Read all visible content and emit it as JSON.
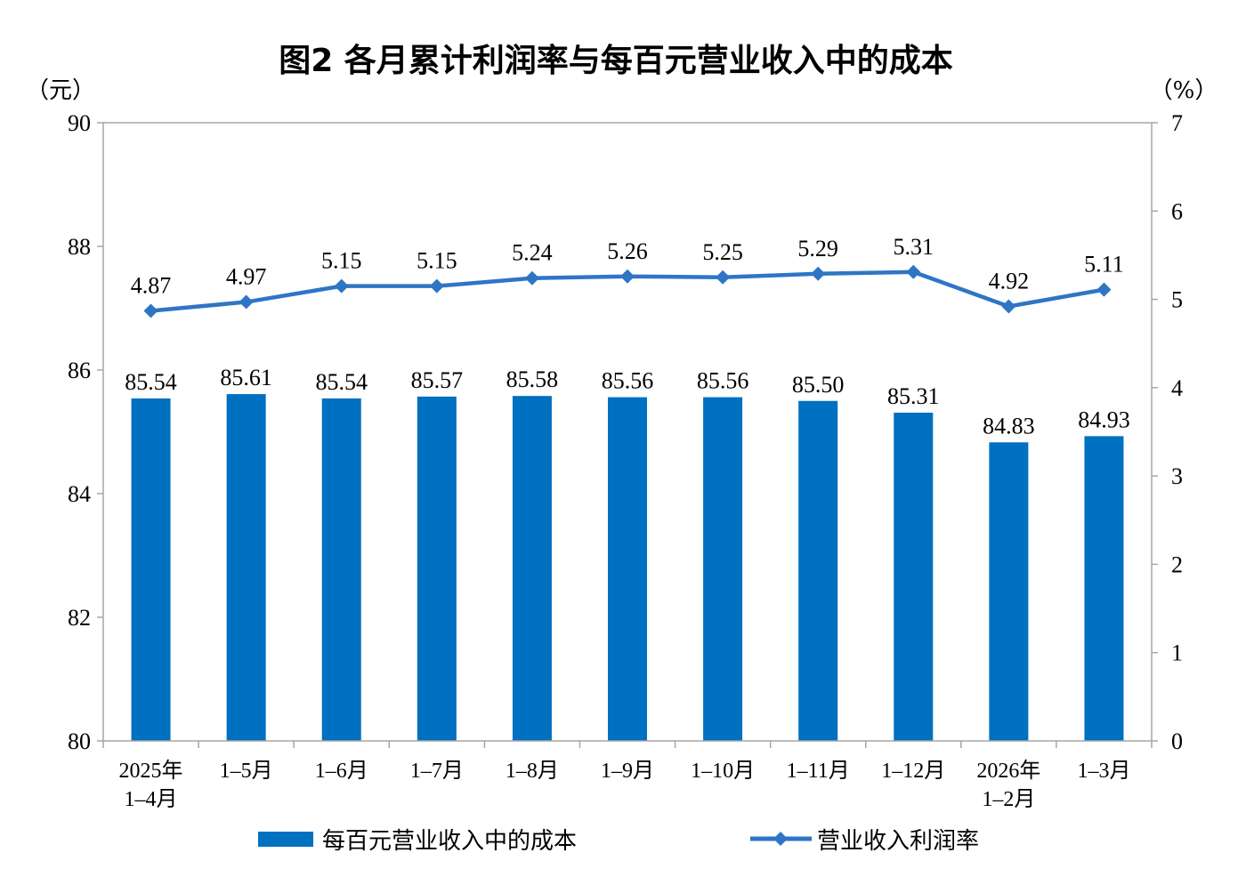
{
  "chart_data": {
    "type": "bar",
    "title": "图2  各月累计利润率与每百元营业收入中的成本",
    "left_unit": "（元）",
    "right_unit": "（%）",
    "categories": [
      [
        "2025年",
        "1–4月"
      ],
      [
        "1–5月"
      ],
      [
        "1–6月"
      ],
      [
        "1–7月"
      ],
      [
        "1–8月"
      ],
      [
        "1–9月"
      ],
      [
        "1–10月"
      ],
      [
        "1–11月"
      ],
      [
        "1–12月"
      ],
      [
        "2026年",
        "1–2月"
      ],
      [
        "1–3月"
      ]
    ],
    "left_axis": {
      "ylim": [
        80,
        90
      ],
      "ticks": [
        "80",
        "82",
        "84",
        "86",
        "88",
        "90"
      ]
    },
    "right_axis": {
      "ylim": [
        0,
        7
      ],
      "ticks": [
        "0",
        "1",
        "2",
        "3",
        "4",
        "5",
        "6",
        "7"
      ]
    },
    "series": [
      {
        "name": "每百元营业收入中的成本",
        "type": "bar",
        "axis": "left",
        "color": "#0070C0",
        "values": [
          85.54,
          85.61,
          85.54,
          85.57,
          85.58,
          85.56,
          85.56,
          85.5,
          85.31,
          84.83,
          84.93
        ],
        "labels": [
          "85.54",
          "85.61",
          "85.54",
          "85.57",
          "85.58",
          "85.56",
          "85.56",
          "85.50",
          "85.31",
          "84.83",
          "84.93"
        ]
      },
      {
        "name": "营业收入利润率",
        "type": "line",
        "axis": "right",
        "color": "#2E75C6",
        "marker": "diamond",
        "values": [
          4.87,
          4.97,
          5.15,
          5.15,
          5.24,
          5.26,
          5.25,
          5.29,
          5.31,
          4.92,
          5.11
        ],
        "labels": [
          "4.87",
          "4.97",
          "5.15",
          "5.15",
          "5.24",
          "5.26",
          "5.25",
          "5.29",
          "5.31",
          "4.92",
          "5.11"
        ]
      }
    ],
    "grid": false,
    "legend": "bottom"
  }
}
